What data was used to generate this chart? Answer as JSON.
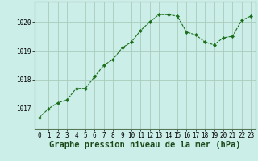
{
  "x": [
    0,
    1,
    2,
    3,
    4,
    5,
    6,
    7,
    8,
    9,
    10,
    11,
    12,
    13,
    14,
    15,
    16,
    17,
    18,
    19,
    20,
    21,
    22,
    23
  ],
  "y": [
    1016.7,
    1017.0,
    1017.2,
    1017.3,
    1017.7,
    1017.7,
    1018.1,
    1018.5,
    1018.7,
    1019.1,
    1019.3,
    1019.7,
    1020.0,
    1020.25,
    1020.25,
    1020.2,
    1019.65,
    1019.55,
    1019.3,
    1019.2,
    1019.45,
    1019.5,
    1020.05,
    1020.2
  ],
  "line_color": "#1a6e1a",
  "marker": "D",
  "marker_size": 2.2,
  "bg_color": "#cceee8",
  "grid_color": "#aaccbb",
  "xlabel": "Graphe pression niveau de la mer (hPa)",
  "xlabel_fontsize": 7.5,
  "xlabel_fontweight": "bold",
  "yticks": [
    1017,
    1018,
    1019,
    1020
  ],
  "ylim": [
    1016.3,
    1020.7
  ],
  "xlim": [
    -0.5,
    23.5
  ],
  "xticks": [
    0,
    1,
    2,
    3,
    4,
    5,
    6,
    7,
    8,
    9,
    10,
    11,
    12,
    13,
    14,
    15,
    16,
    17,
    18,
    19,
    20,
    21,
    22,
    23
  ],
  "tick_fontsize": 5.5,
  "spine_color": "#557755"
}
